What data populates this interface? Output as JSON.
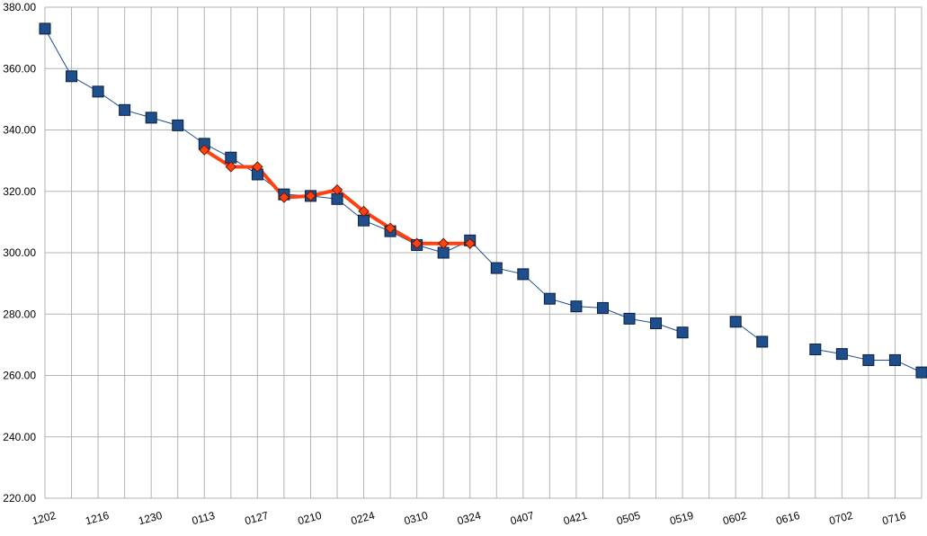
{
  "chart_data": {
    "type": "line",
    "title": "",
    "xlabel": "",
    "ylabel": "",
    "ylim": [
      220,
      380
    ],
    "ytick_step": 20,
    "y_tick_labels": [
      "220.00",
      "240.00",
      "260.00",
      "280.00",
      "300.00",
      "320.00",
      "340.00",
      "360.00",
      "380.00"
    ],
    "x_tick_labels": [
      "1202",
      "1216",
      "1230",
      "0113",
      "0127",
      "0210",
      "0224",
      "0310",
      "0324",
      "0407",
      "0421",
      "0505",
      "0519",
      "0602",
      "0616",
      "0702",
      "0716"
    ],
    "grid": true,
    "legend": "none",
    "series": [
      {
        "color": "#1f4e8c",
        "marker": "square",
        "values": [
          373,
          357.5,
          352.5,
          346.5,
          344,
          341.5,
          335.5,
          331,
          325.5,
          319,
          318.5,
          317.5,
          310.5,
          307,
          302.5,
          300,
          304,
          295,
          293,
          285,
          282.5,
          282,
          278.5,
          277,
          274,
          null,
          277.5,
          271,
          null,
          268.5,
          267,
          265,
          265,
          261
        ]
      },
      {
        "color": "#ff4010",
        "marker": "diamond",
        "values": [
          null,
          null,
          null,
          null,
          null,
          null,
          333.5,
          328,
          328,
          318,
          318.5,
          320.5,
          313.5,
          308,
          303,
          303,
          303,
          null,
          null,
          null,
          null,
          null,
          null,
          null,
          null,
          null,
          null,
          null,
          null,
          null,
          null,
          null,
          null,
          null
        ]
      }
    ]
  }
}
